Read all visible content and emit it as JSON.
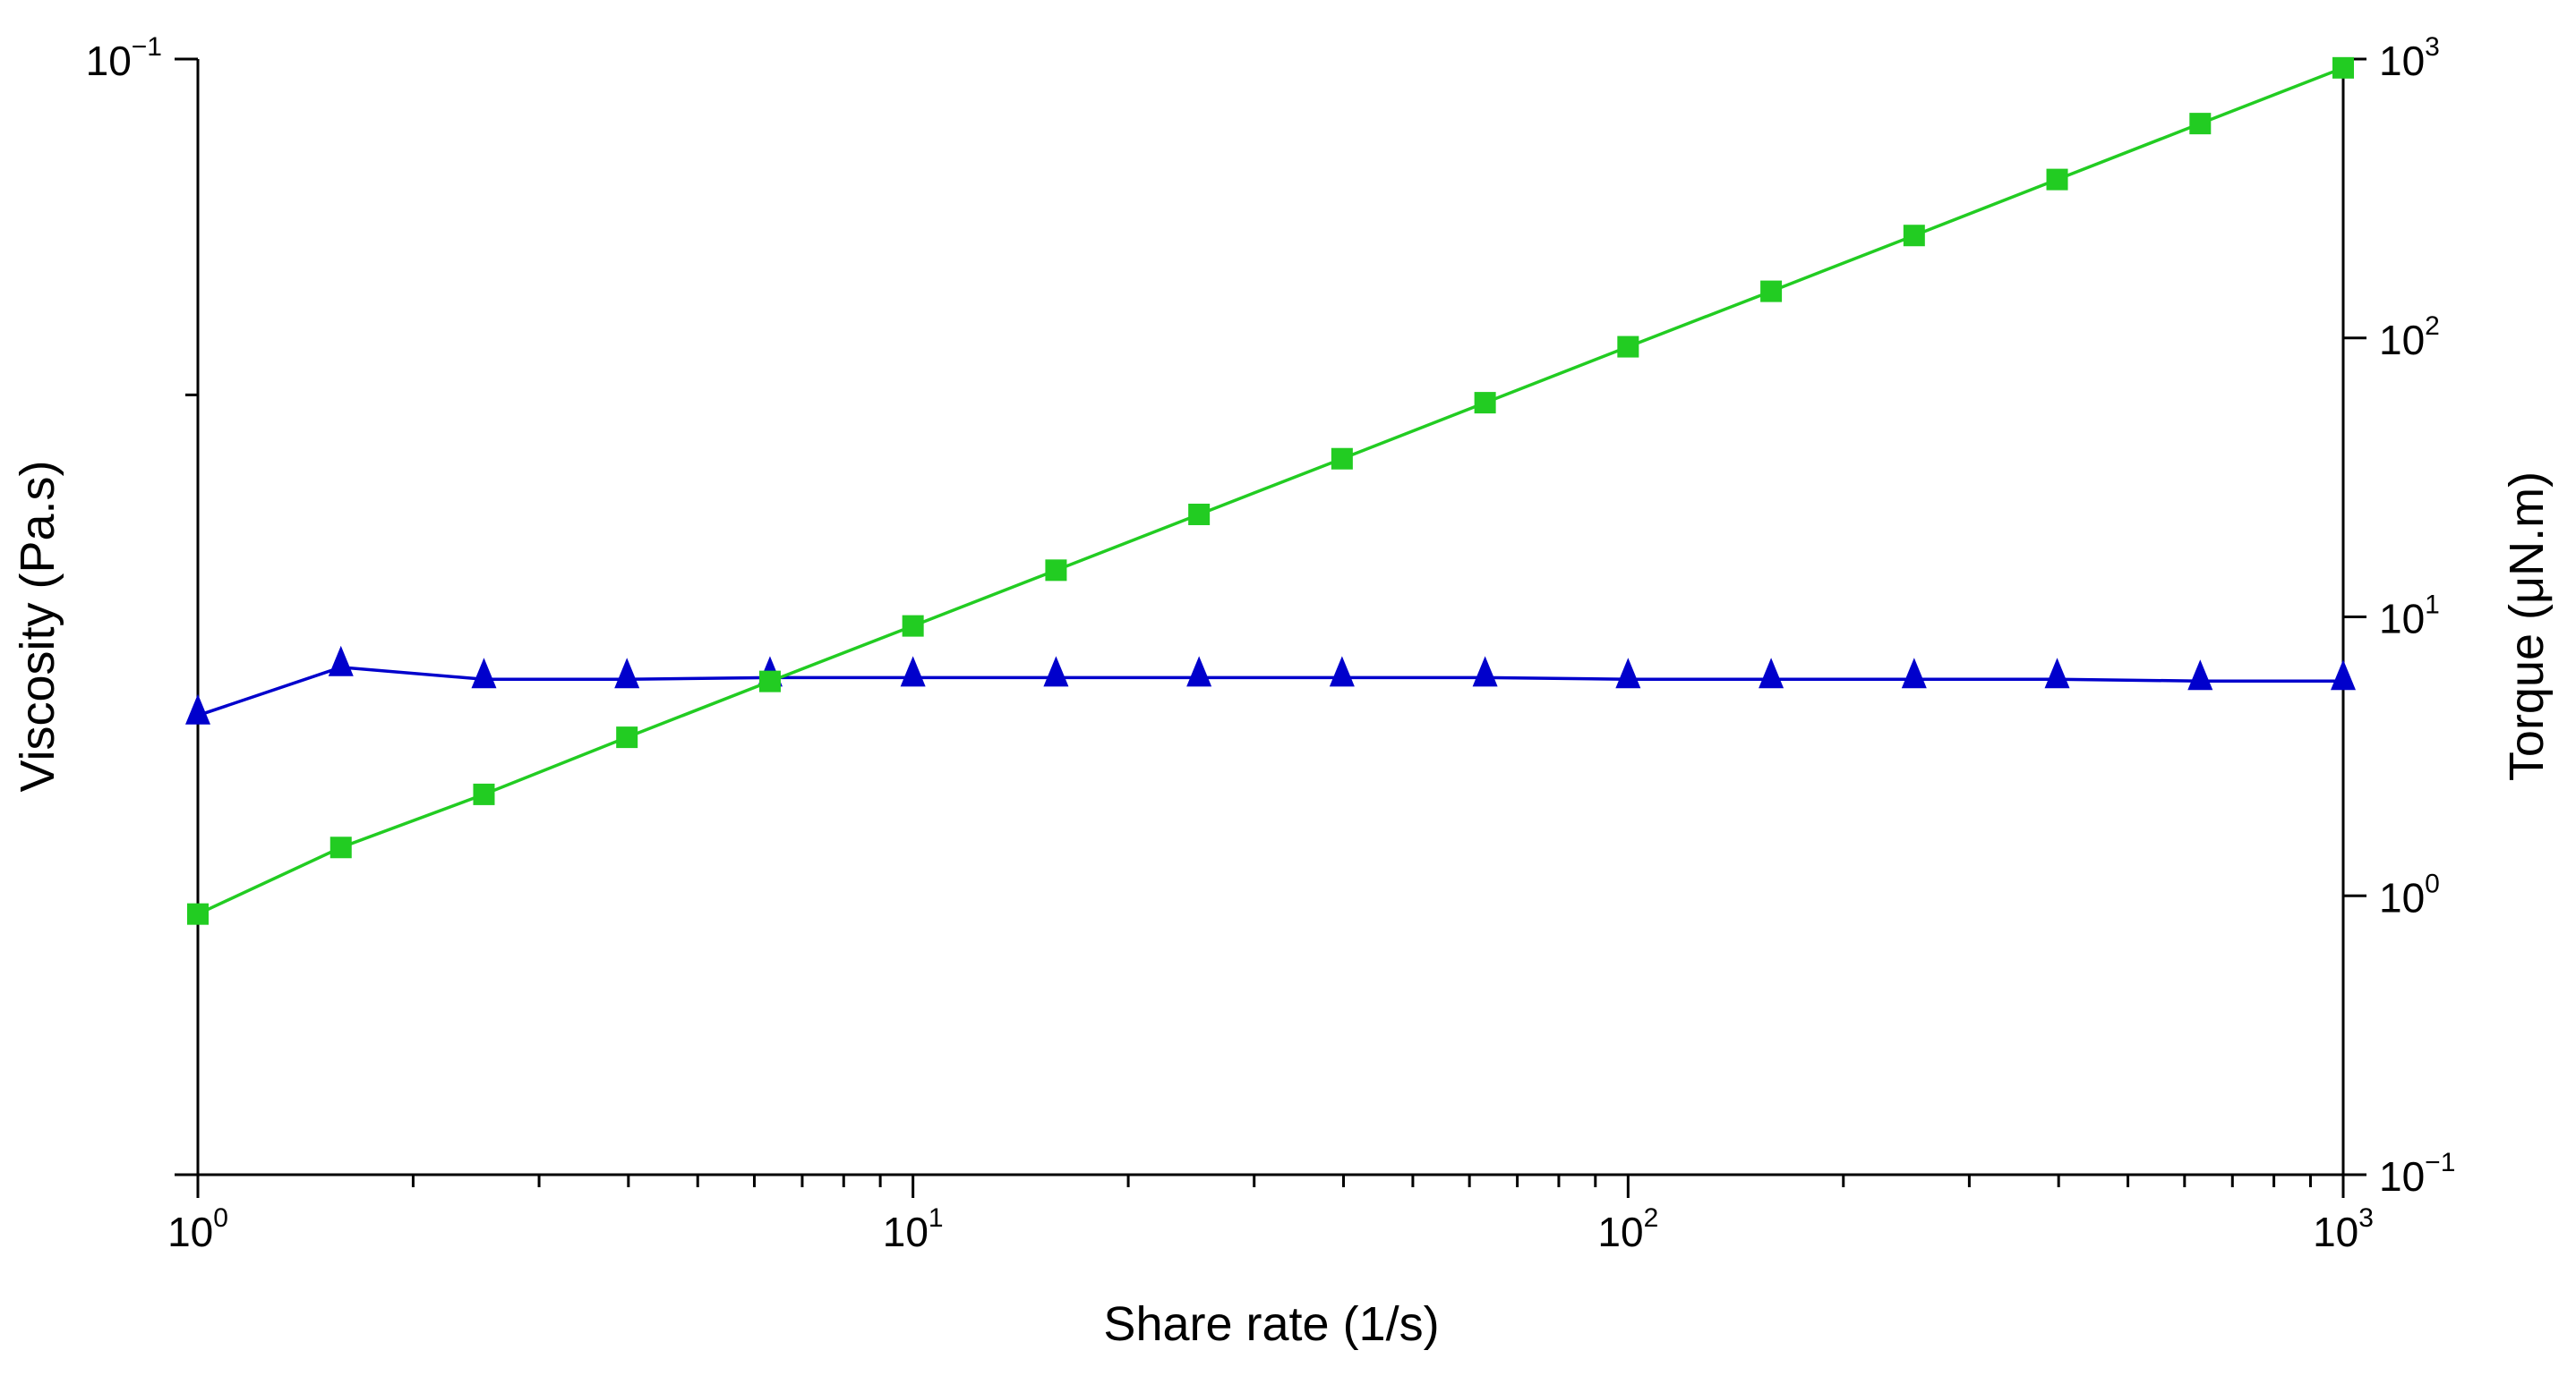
{
  "chart_data": {
    "type": "line",
    "xlabel": "Share rate (1/s)",
    "ylabel_left": "Viscosity (Pa.s)",
    "ylabel_right": "Torque (μN.m)",
    "x_scale": "log",
    "y_left_scale": "log",
    "y_right_scale": "log",
    "xlim": [
      1,
      1000
    ],
    "ylim_left": [
      0.01,
      0.1
    ],
    "ylim_right": [
      0.1,
      1000
    ],
    "grid": false,
    "legend": "none",
    "x_ticks": [
      {
        "value": 1,
        "base": "10",
        "exp": "0"
      },
      {
        "value": 10,
        "base": "10",
        "exp": "1"
      },
      {
        "value": 100,
        "base": "10",
        "exp": "2"
      },
      {
        "value": 1000,
        "base": "10",
        "exp": "3"
      }
    ],
    "y_left_ticks": [
      {
        "value": 0.1,
        "base": "10",
        "exp": "−1"
      }
    ],
    "y_right_ticks": [
      {
        "value": 0.1,
        "base": "10",
        "exp": "−1"
      },
      {
        "value": 1,
        "base": "10",
        "exp": "0"
      },
      {
        "value": 10,
        "base": "10",
        "exp": "1"
      },
      {
        "value": 100,
        "base": "10",
        "exp": "2"
      },
      {
        "value": 1000,
        "base": "10",
        "exp": "3"
      }
    ],
    "series": [
      {
        "axis": "left",
        "marker": "triangle",
        "color": "#0000cc",
        "x": [
          1,
          1.585,
          2.512,
          3.981,
          6.31,
          10,
          15.85,
          25.12,
          39.81,
          63.1,
          100,
          158.5,
          251.2,
          398.1,
          631,
          1000
        ],
        "y": [
          0.0258,
          0.0285,
          0.0278,
          0.0278,
          0.0279,
          0.0279,
          0.0279,
          0.0279,
          0.0279,
          0.0279,
          0.0278,
          0.0278,
          0.0278,
          0.0278,
          0.0277,
          0.0277
        ]
      },
      {
        "axis": "right",
        "marker": "square",
        "color": "#22cc22",
        "x": [
          1,
          1.585,
          2.512,
          3.981,
          6.31,
          10,
          15.85,
          25.12,
          39.81,
          63.1,
          100,
          158.5,
          251.2,
          398.1,
          631,
          1000
        ],
        "y": [
          0.86,
          1.49,
          2.31,
          3.7,
          5.87,
          9.28,
          14.7,
          23.3,
          36.9,
          58.6,
          93,
          147,
          233,
          370,
          587,
          930
        ]
      }
    ]
  }
}
